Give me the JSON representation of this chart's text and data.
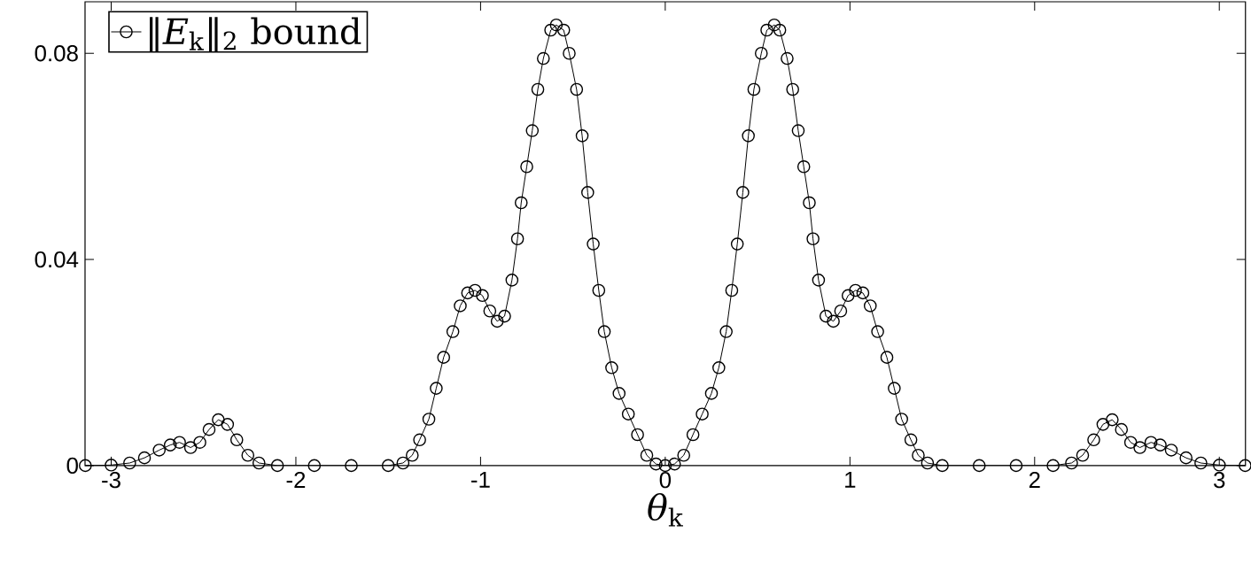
{
  "chart_data": {
    "type": "line",
    "xlabel": "*θ*$_{k}$",
    "xlim": [
      -3.1416,
      3.1416
    ],
    "ylim": [
      0,
      0.09
    ],
    "xticks": [
      -3,
      -2,
      -1,
      0,
      1,
      2,
      3
    ],
    "yticks": [
      0,
      0.04,
      0.08
    ],
    "legend": "top left",
    "marker": "circle",
    "line_style": "solid",
    "grid": false,
    "series": [
      {
        "name": "‖*E*$_{k}$‖$_{2}$ bound",
        "color": "#000000",
        "x": [
          -3.14,
          -3.0,
          -2.9,
          -2.82,
          -2.74,
          -2.68,
          -2.63,
          -2.57,
          -2.52,
          -2.47,
          -2.42,
          -2.37,
          -2.32,
          -2.26,
          -2.2,
          -2.1,
          -1.9,
          -1.7,
          -1.5,
          -1.42,
          -1.37,
          -1.33,
          -1.28,
          -1.24,
          -1.2,
          -1.15,
          -1.11,
          -1.07,
          -1.03,
          -0.99,
          -0.95,
          -0.91,
          -0.87,
          -0.83,
          -0.8,
          -0.78,
          -0.75,
          -0.72,
          -0.69,
          -0.66,
          -0.62,
          -0.59,
          -0.55,
          -0.52,
          -0.48,
          -0.45,
          -0.42,
          -0.39,
          -0.36,
          -0.33,
          -0.29,
          -0.25,
          -0.2,
          -0.15,
          -0.1,
          -0.05,
          0,
          0.05,
          0.1,
          0.15,
          0.2,
          0.25,
          0.29,
          0.33,
          0.36,
          0.39,
          0.42,
          0.45,
          0.48,
          0.52,
          0.55,
          0.59,
          0.62,
          0.66,
          0.69,
          0.72,
          0.75,
          0.78,
          0.8,
          0.83,
          0.87,
          0.91,
          0.95,
          0.99,
          1.03,
          1.07,
          1.11,
          1.15,
          1.2,
          1.24,
          1.28,
          1.33,
          1.37,
          1.42,
          1.5,
          1.7,
          1.9,
          2.1,
          2.2,
          2.26,
          2.32,
          2.37,
          2.42,
          2.47,
          2.52,
          2.57,
          2.63,
          2.68,
          2.74,
          2.82,
          2.9,
          3.0,
          3.14
        ],
        "values": [
          0,
          0.0001,
          0.0005,
          0.0015,
          0.003,
          0.004,
          0.0045,
          0.0035,
          0.0045,
          0.007,
          0.0089,
          0.008,
          0.005,
          0.002,
          0.0005,
          0,
          0,
          0,
          0,
          0.0005,
          0.002,
          0.005,
          0.009,
          0.015,
          0.021,
          0.026,
          0.031,
          0.0335,
          0.034,
          0.033,
          0.03,
          0.028,
          0.029,
          0.036,
          0.044,
          0.051,
          0.058,
          0.065,
          0.073,
          0.079,
          0.0845,
          0.0855,
          0.0845,
          0.08,
          0.073,
          0.064,
          0.053,
          0.043,
          0.034,
          0.026,
          0.019,
          0.014,
          0.01,
          0.006,
          0.002,
          0.0003,
          0,
          0.0003,
          0.002,
          0.006,
          0.01,
          0.014,
          0.019,
          0.026,
          0.034,
          0.043,
          0.053,
          0.064,
          0.073,
          0.08,
          0.0845,
          0.0855,
          0.0845,
          0.079,
          0.073,
          0.065,
          0.058,
          0.051,
          0.044,
          0.036,
          0.029,
          0.028,
          0.03,
          0.033,
          0.034,
          0.0335,
          0.031,
          0.026,
          0.021,
          0.015,
          0.009,
          0.005,
          0.002,
          0.0005,
          0,
          0,
          0,
          0,
          0.0005,
          0.002,
          0.005,
          0.008,
          0.0089,
          0.007,
          0.0045,
          0.0035,
          0.0045,
          0.004,
          0.003,
          0.0015,
          0.0005,
          0.0001,
          0
        ]
      }
    ]
  }
}
